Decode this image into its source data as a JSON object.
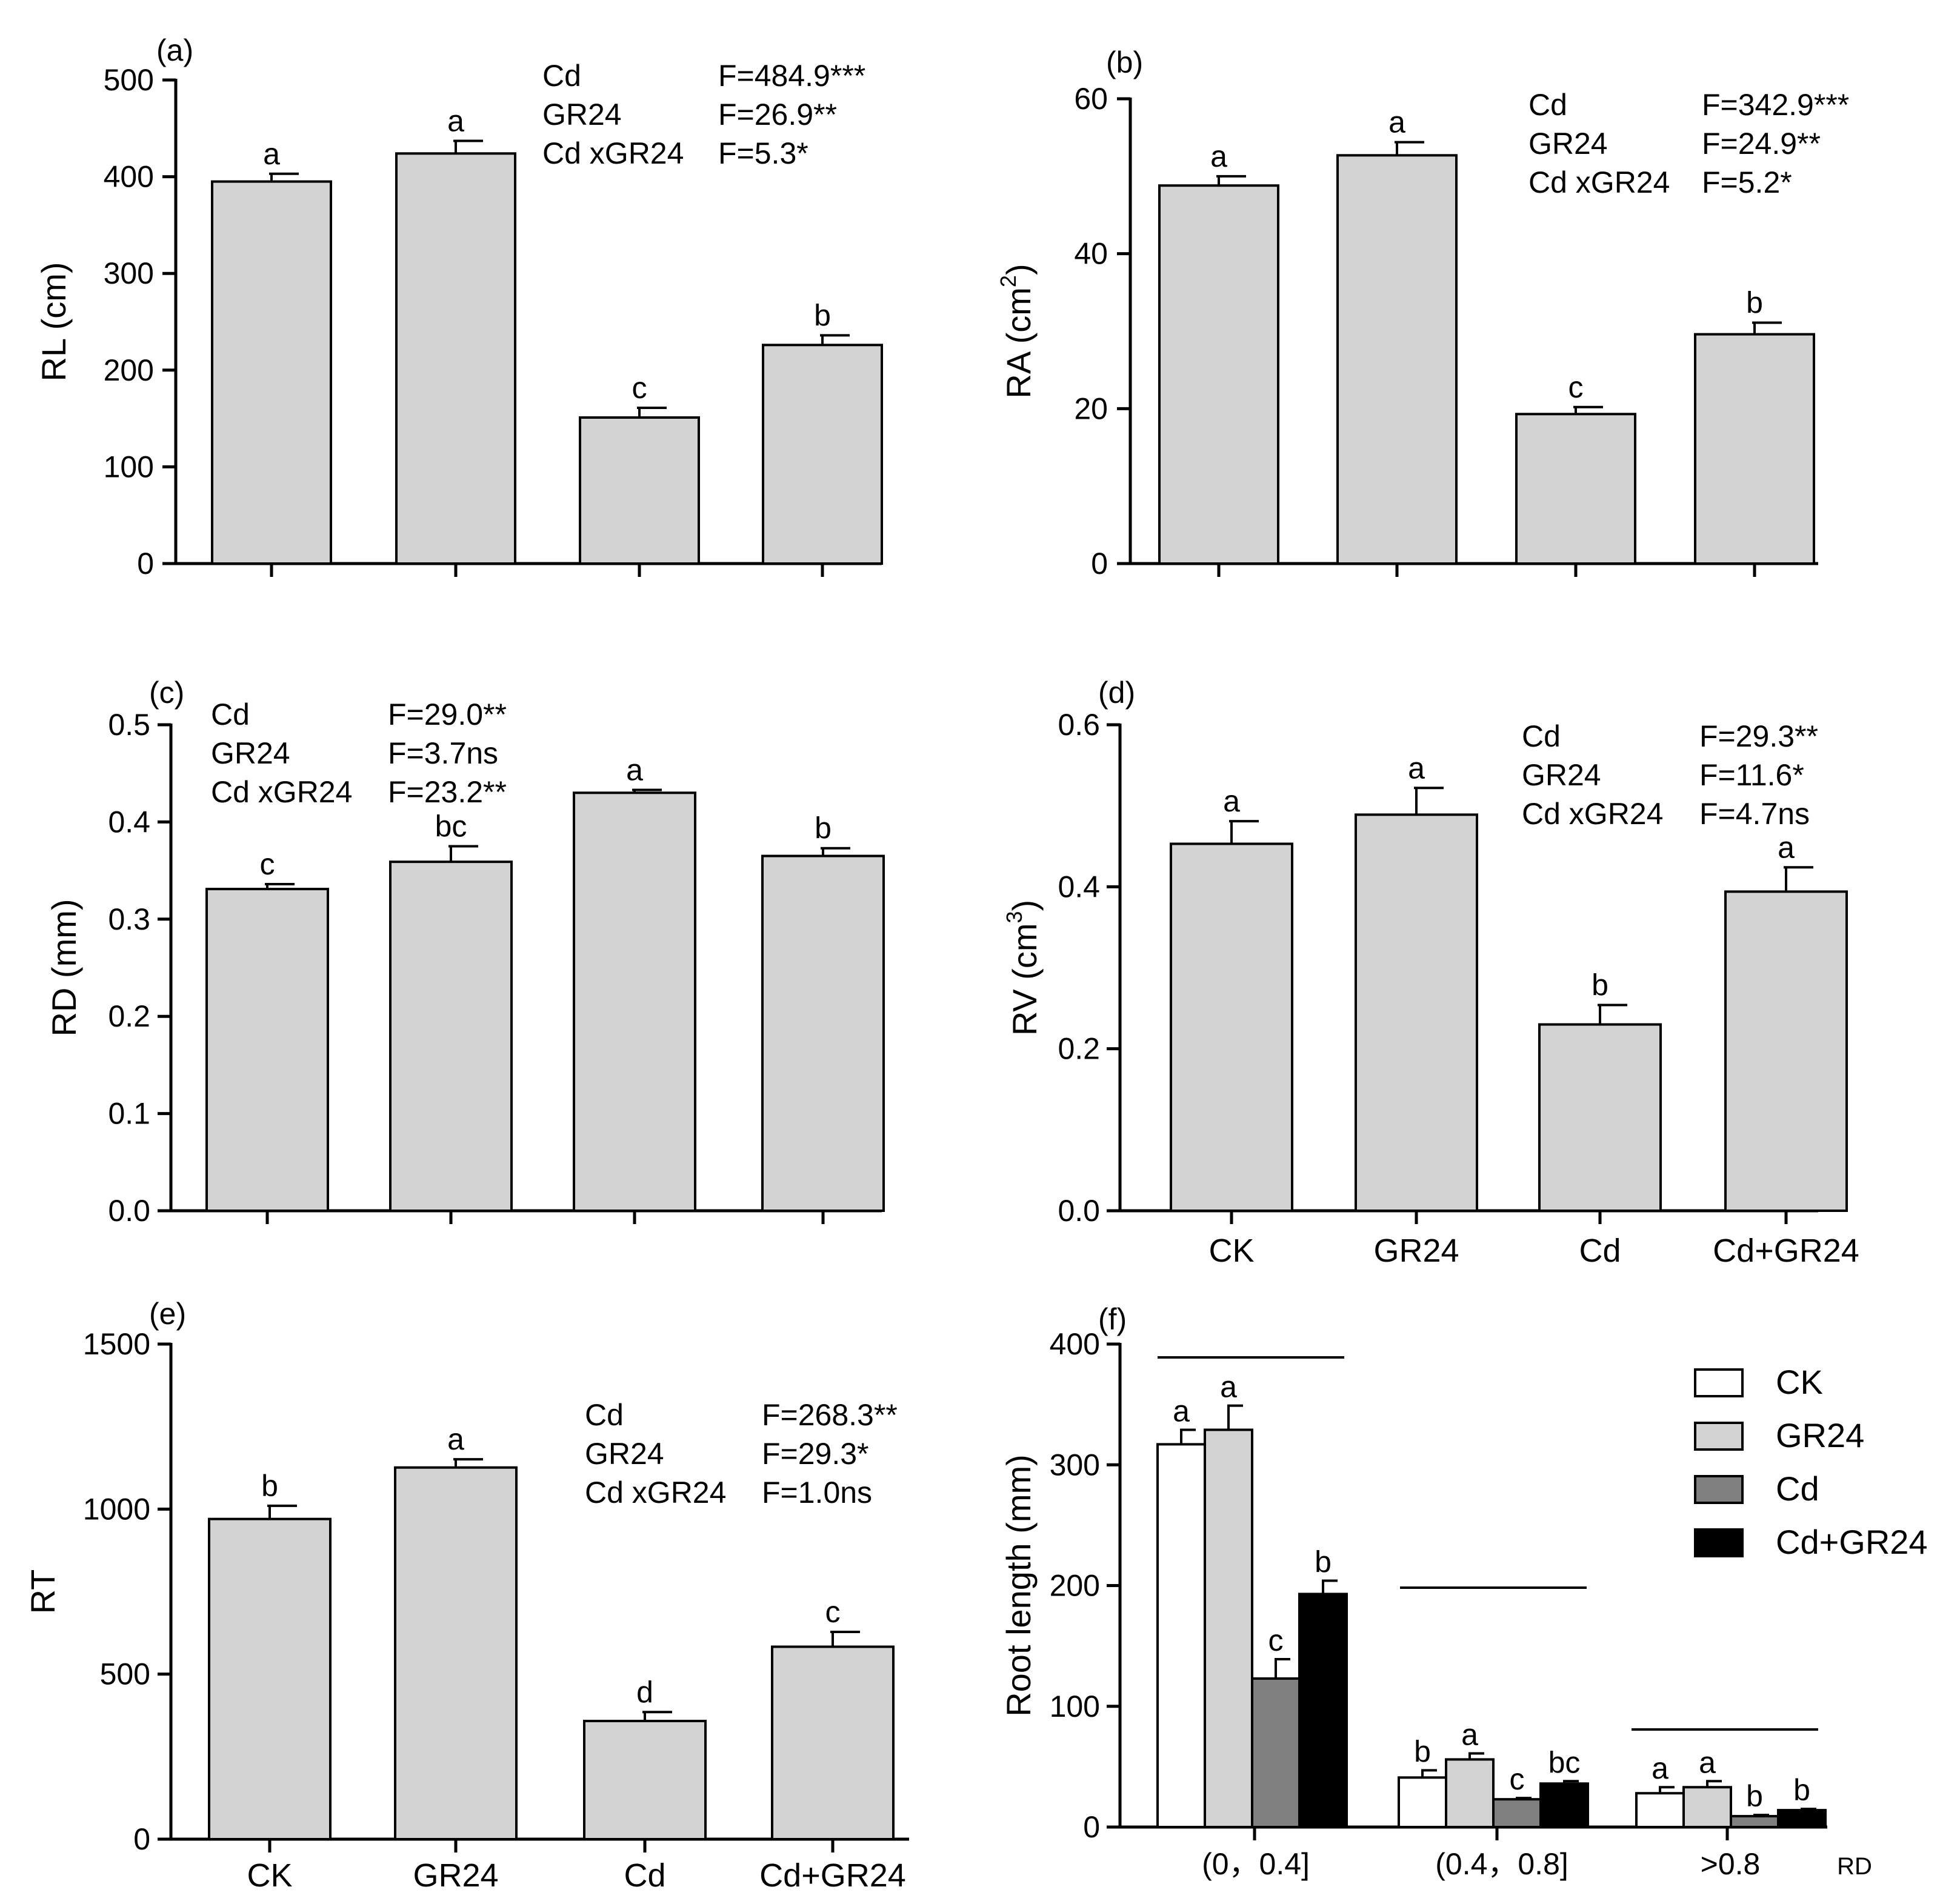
{
  "colors": {
    "bar_fill": "#d3d3d3",
    "stroke": "#000000",
    "ck": "#ffffff",
    "gr24": "#d3d3d3",
    "cd": "#808080",
    "cdgr24": "#000000"
  },
  "chart_data": [
    {
      "panel": "(a)",
      "type": "bar",
      "ylabel": "RL (cm)",
      "categories": [
        "CK",
        "GR24",
        "Cd",
        "Cd+GR24"
      ],
      "values": [
        395,
        424,
        151,
        226
      ],
      "errors": [
        8,
        13,
        10,
        10
      ],
      "letters": [
        "a",
        "a",
        "c",
        "b"
      ],
      "ylim": [
        0,
        500
      ],
      "yticks": [
        {
          "v": 0,
          "label": "0"
        },
        {
          "v": 100,
          "label": "100"
        },
        {
          "v": 200,
          "label": "200"
        },
        {
          "v": 300,
          "label": "300"
        },
        {
          "v": 400,
          "label": "400"
        },
        {
          "v": 500,
          "label": "500"
        }
      ],
      "show_xlabels": false,
      "stats": [
        {
          "factor": "Cd",
          "f": "F=484.9***"
        },
        {
          "factor": "GR24",
          "f": "F=26.9**"
        },
        {
          "factor": "Cd xGR24",
          "f": "F=5.3*"
        }
      ]
    },
    {
      "panel": "(b)",
      "type": "bar",
      "ylabel": "RA (cm²)",
      "categories": [
        "CK",
        "GR24",
        "Cd",
        "Cd+GR24"
      ],
      "values": [
        48.8,
        52.7,
        19.3,
        29.6
      ],
      "errors": [
        1.2,
        1.7,
        0.9,
        1.5
      ],
      "letters": [
        "a",
        "a",
        "c",
        "b"
      ],
      "ylim": [
        0,
        60
      ],
      "yticks": [
        {
          "v": 0,
          "label": "0"
        },
        {
          "v": 20,
          "label": "20"
        },
        {
          "v": 40,
          "label": "40"
        },
        {
          "v": 60,
          "label": "60"
        }
      ],
      "show_xlabels": false,
      "stats": [
        {
          "factor": "Cd",
          "f": "F=342.9***"
        },
        {
          "factor": "GR24",
          "f": "F=24.9**"
        },
        {
          "factor": "Cd xGR24",
          "f": "F=5.2*"
        }
      ]
    },
    {
      "panel": "(c)",
      "type": "bar",
      "ylabel": "RD (mm)",
      "categories": [
        "CK",
        "GR24",
        "Cd",
        "Cd+GR24"
      ],
      "values": [
        0.331,
        0.359,
        0.43,
        0.365
      ],
      "errors": [
        0.005,
        0.016,
        0.003,
        0.008
      ],
      "letters": [
        "c",
        "bc",
        "a",
        "b"
      ],
      "ylim": [
        0,
        0.5
      ],
      "yticks": [
        {
          "v": 0,
          "label": "0.0"
        },
        {
          "v": 0.1,
          "label": "0.1"
        },
        {
          "v": 0.2,
          "label": "0.2"
        },
        {
          "v": 0.3,
          "label": "0.3"
        },
        {
          "v": 0.4,
          "label": "0.4"
        },
        {
          "v": 0.5,
          "label": "0.5"
        }
      ],
      "show_xlabels": false,
      "stats": [
        {
          "factor": "Cd",
          "f": "F=29.0**"
        },
        {
          "factor": "GR24",
          "f": "F=3.7ns"
        },
        {
          "factor": "Cd xGR24",
          "f": "F=23.2**"
        }
      ]
    },
    {
      "panel": "(d)",
      "type": "bar",
      "ylabel": "RV (cm³)",
      "categories": [
        "CK",
        "GR24",
        "Cd",
        "Cd+GR24"
      ],
      "values": [
        0.453,
        0.489,
        0.23,
        0.394
      ],
      "errors": [
        0.028,
        0.033,
        0.024,
        0.03
      ],
      "letters": [
        "a",
        "a",
        "b",
        "a"
      ],
      "ylim": [
        0,
        0.6
      ],
      "yticks": [
        {
          "v": 0,
          "label": "0.0"
        },
        {
          "v": 0.2,
          "label": "0.2"
        },
        {
          "v": 0.4,
          "label": "0.4"
        },
        {
          "v": 0.6,
          "label": "0.6"
        }
      ],
      "show_xlabels": true,
      "stats": [
        {
          "factor": "Cd",
          "f": "F=29.3**"
        },
        {
          "factor": "GR24",
          "f": "F=11.6*"
        },
        {
          "factor": "Cd xGR24",
          "f": "F=4.7ns"
        }
      ]
    },
    {
      "panel": "(e)",
      "type": "bar",
      "ylabel": "RT",
      "categories": [
        "CK",
        "GR24",
        "Cd",
        "Cd+GR24"
      ],
      "values": [
        970,
        1126,
        358,
        583
      ],
      "errors": [
        40,
        25,
        27,
        45
      ],
      "letters": [
        "b",
        "a",
        "d",
        "c"
      ],
      "ylim": [
        0,
        1500
      ],
      "yticks": [
        {
          "v": 0,
          "label": "0"
        },
        {
          "v": 500,
          "label": "500"
        },
        {
          "v": 1000,
          "label": "1000"
        },
        {
          "v": 1500,
          "label": "1500"
        }
      ],
      "show_xlabels": true,
      "stats": [
        {
          "factor": "Cd",
          "f": "F=268.3**"
        },
        {
          "factor": "GR24",
          "f": "F=29.3*"
        },
        {
          "factor": "Cd xGR24",
          "f": "F=1.0ns"
        }
      ]
    },
    {
      "panel": "(f)",
      "type": "grouped_bar",
      "ylabel": "Root length (mm)",
      "xlabel": "RD",
      "groups": [
        "(0，0.4]",
        "(0.4，0.8]",
        ">0.8"
      ],
      "series_names": [
        "CK",
        "GR24",
        "Cd",
        "Cd+GR24"
      ],
      "values": [
        [
          317,
          329,
          123,
          193
        ],
        [
          41,
          56,
          23,
          36
        ],
        [
          28,
          33,
          9,
          14
        ]
      ],
      "errors": [
        [
          12,
          20,
          16,
          11
        ],
        [
          6,
          5,
          1,
          2
        ],
        [
          5,
          5,
          1,
          1
        ]
      ],
      "letters": [
        [
          "a",
          "a",
          "c",
          "b"
        ],
        [
          "b",
          "a",
          "c",
          "bc"
        ],
        [
          "a",
          "a",
          "b",
          "b"
        ]
      ],
      "ylim": [
        0,
        400
      ],
      "yticks": [
        {
          "v": 0,
          "label": "0"
        },
        {
          "v": 100,
          "label": "100"
        },
        {
          "v": 200,
          "label": "200"
        },
        {
          "v": 300,
          "label": "300"
        },
        {
          "v": 400,
          "label": "400"
        }
      ]
    }
  ]
}
